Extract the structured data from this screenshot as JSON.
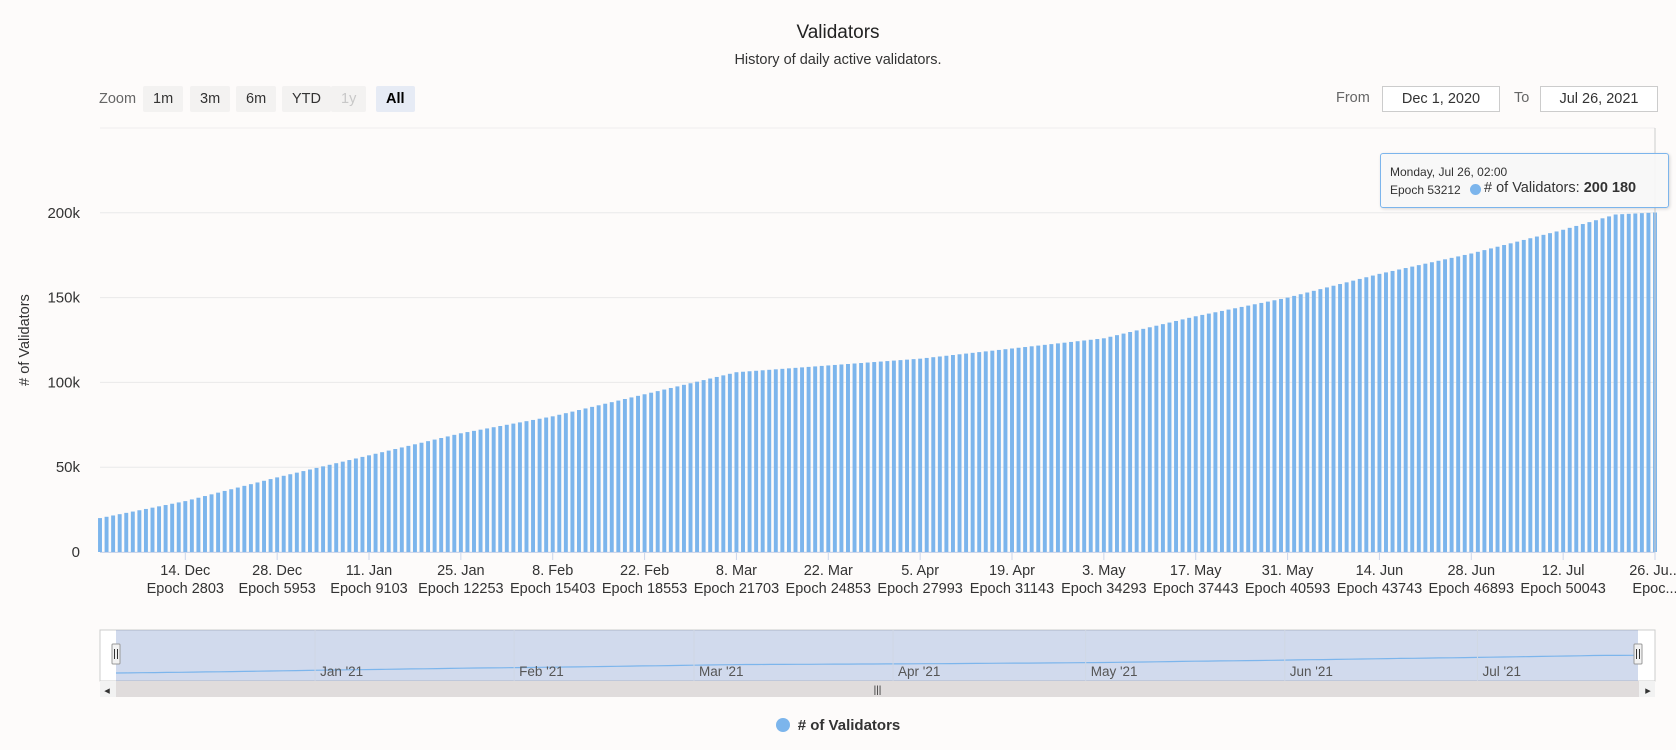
{
  "title": "Validators",
  "subtitle": "History of daily active validators.",
  "zoom": {
    "label": "Zoom",
    "buttons": [
      {
        "label": "1m",
        "state": "normal"
      },
      {
        "label": "3m",
        "state": "normal"
      },
      {
        "label": "6m",
        "state": "normal"
      },
      {
        "label": "YTD",
        "state": "normal"
      },
      {
        "label": "1y",
        "state": "disabled"
      },
      {
        "label": "All",
        "state": "active"
      }
    ]
  },
  "range": {
    "from_label": "From",
    "from_value": "Dec 1, 2020",
    "to_label": "To",
    "to_value": "Jul 26, 2021"
  },
  "tooltip": {
    "date": "Monday, Jul 26, 02:00",
    "epoch": "Epoch 53212",
    "series": "# of Validators",
    "value": "200 180"
  },
  "navigator": {
    "months": [
      "Jan '21",
      "Feb '21",
      "Mar '21",
      "Apr '21",
      "May '21",
      "Jun '21",
      "Jul '21"
    ],
    "grip_glyph": "|||",
    "left_arrow": "◂",
    "right_arrow": "▸"
  },
  "legend": {
    "label": "# of Validators",
    "color": "#7cb5ec"
  },
  "chart_data": {
    "type": "bar",
    "title": "Validators",
    "subtitle": "History of daily active validators.",
    "ylabel": "# of Validators",
    "ylim": [
      0,
      250000
    ],
    "y_ticks": [
      0,
      50000,
      100000,
      150000,
      200000
    ],
    "y_tick_labels": [
      "0",
      "50k",
      "100k",
      "150k",
      "200k"
    ],
    "x_range": [
      "2020-12-01",
      "2021-07-26"
    ],
    "x_ticks": [
      {
        "date": "2020-12-14",
        "label": "14. Dec",
        "epoch": "Epoch 2803"
      },
      {
        "date": "2020-12-28",
        "label": "28. Dec",
        "epoch": "Epoch 5953"
      },
      {
        "date": "2021-01-11",
        "label": "11. Jan",
        "epoch": "Epoch 9103"
      },
      {
        "date": "2021-01-25",
        "label": "25. Jan",
        "epoch": "Epoch 12253"
      },
      {
        "date": "2021-02-08",
        "label": "8. Feb",
        "epoch": "Epoch 15403"
      },
      {
        "date": "2021-02-22",
        "label": "22. Feb",
        "epoch": "Epoch 18553"
      },
      {
        "date": "2021-03-08",
        "label": "8. Mar",
        "epoch": "Epoch 21703"
      },
      {
        "date": "2021-03-22",
        "label": "22. Mar",
        "epoch": "Epoch 24853"
      },
      {
        "date": "2021-04-05",
        "label": "5. Apr",
        "epoch": "Epoch 27993"
      },
      {
        "date": "2021-04-19",
        "label": "19. Apr",
        "epoch": "Epoch 31143"
      },
      {
        "date": "2021-05-03",
        "label": "3. May",
        "epoch": "Epoch 34293"
      },
      {
        "date": "2021-05-17",
        "label": "17. May",
        "epoch": "Epoch 37443"
      },
      {
        "date": "2021-05-31",
        "label": "31. May",
        "epoch": "Epoch 40593"
      },
      {
        "date": "2021-06-14",
        "label": "14. Jun",
        "epoch": "Epoch 43743"
      },
      {
        "date": "2021-06-28",
        "label": "28. Jun",
        "epoch": "Epoch 46893"
      },
      {
        "date": "2021-07-12",
        "label": "12. Jul",
        "epoch": "Epoch 50043"
      },
      {
        "date": "2021-07-26",
        "label": "26. Ju...",
        "epoch": "Epoc..."
      }
    ],
    "series": [
      {
        "name": "# of Validators",
        "color": "#7cb5ec",
        "points": [
          [
            "2020-12-01",
            20000
          ],
          [
            "2020-12-14",
            30000
          ],
          [
            "2020-12-28",
            44000
          ],
          [
            "2021-01-11",
            57000
          ],
          [
            "2021-01-25",
            70000
          ],
          [
            "2021-02-08",
            80000
          ],
          [
            "2021-02-22",
            93000
          ],
          [
            "2021-03-08",
            106000
          ],
          [
            "2021-03-22",
            110000
          ],
          [
            "2021-04-05",
            114000
          ],
          [
            "2021-04-19",
            120000
          ],
          [
            "2021-05-03",
            126000
          ],
          [
            "2021-05-17",
            139000
          ],
          [
            "2021-05-31",
            150000
          ],
          [
            "2021-06-14",
            164000
          ],
          [
            "2021-06-28",
            176000
          ],
          [
            "2021-07-12",
            190000
          ],
          [
            "2021-07-20",
            199000
          ],
          [
            "2021-07-26",
            200180
          ]
        ]
      }
    ]
  }
}
